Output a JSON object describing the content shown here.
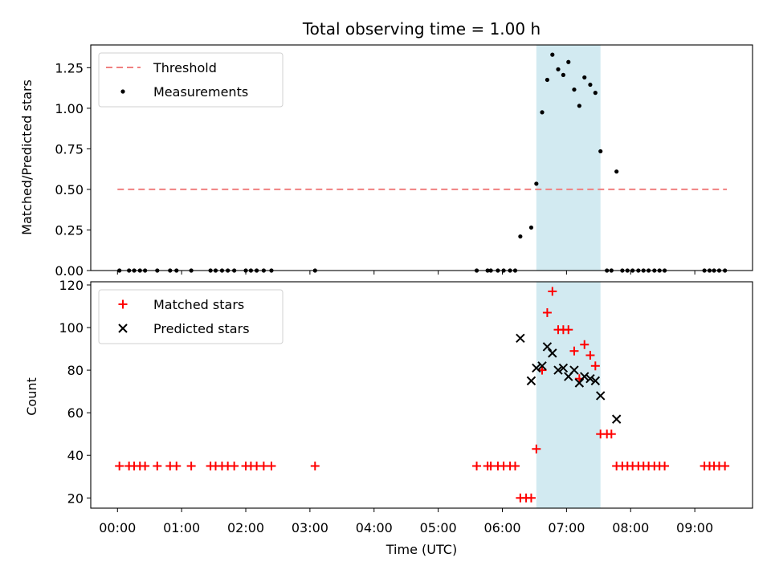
{
  "chart_data": {
    "title": "Total observing time = 1.00 h",
    "xlabel": "Time (UTC)",
    "x_unit": "hours",
    "xlim": [
      -0.4167,
      9.9
    ],
    "x_ticks": [
      {
        "value": 0,
        "label": "00:00"
      },
      {
        "value": 1,
        "label": "01:00"
      },
      {
        "value": 2,
        "label": "02:00"
      },
      {
        "value": 3,
        "label": "03:00"
      },
      {
        "value": 4,
        "label": "04:00"
      },
      {
        "value": 5,
        "label": "05:00"
      },
      {
        "value": 6,
        "label": "06:00"
      },
      {
        "value": 7,
        "label": "07:00"
      },
      {
        "value": 8,
        "label": "08:00"
      },
      {
        "value": 9,
        "label": "09:00"
      }
    ],
    "highlight_span": {
      "x0": 6.53,
      "x1": 7.53,
      "color": "#add8e6"
    },
    "panels": [
      {
        "type": "scatter",
        "ylabel": "Matched/Predicted stars",
        "ylim": [
          0,
          1.39
        ],
        "y_ticks": [
          "0.00",
          "0.25",
          "0.50",
          "0.75",
          "1.00",
          "1.25"
        ],
        "y_tick_values": [
          0,
          0.25,
          0.5,
          0.75,
          1.0,
          1.25
        ],
        "legend": {
          "placement": "upper left",
          "entries": [
            "Threshold",
            "Measurements"
          ]
        },
        "threshold": {
          "name": "Threshold",
          "y": 0.5,
          "x_range": [
            0.0,
            9.5
          ],
          "color": "#f08080",
          "style": "dashed"
        },
        "series": [
          {
            "name": "Measurements",
            "color": "#000000",
            "marker": "dot",
            "points": [
              [
                0.03,
                0
              ],
              [
                0.18,
                0
              ],
              [
                0.26,
                0
              ],
              [
                0.35,
                0
              ],
              [
                0.43,
                0
              ],
              [
                0.62,
                0
              ],
              [
                0.82,
                0
              ],
              [
                0.92,
                0
              ],
              [
                1.15,
                0
              ],
              [
                1.45,
                0
              ],
              [
                1.53,
                0
              ],
              [
                1.63,
                0
              ],
              [
                1.72,
                0
              ],
              [
                1.82,
                0
              ],
              [
                2.0,
                0
              ],
              [
                2.08,
                0
              ],
              [
                2.17,
                0
              ],
              [
                2.28,
                0
              ],
              [
                2.4,
                0
              ],
              [
                3.08,
                0
              ],
              [
                5.6,
                0
              ],
              [
                5.77,
                0
              ],
              [
                5.82,
                0
              ],
              [
                5.93,
                0
              ],
              [
                6.02,
                0
              ],
              [
                6.12,
                0
              ],
              [
                6.2,
                0
              ],
              [
                6.28,
                0.21
              ],
              [
                6.45,
                0.265
              ],
              [
                6.53,
                0.535
              ],
              [
                6.62,
                0.975
              ],
              [
                6.7,
                1.175
              ],
              [
                6.78,
                1.33
              ],
              [
                6.87,
                1.24
              ],
              [
                6.95,
                1.205
              ],
              [
                7.03,
                1.285
              ],
              [
                7.12,
                1.115
              ],
              [
                7.2,
                1.015
              ],
              [
                7.28,
                1.19
              ],
              [
                7.37,
                1.145
              ],
              [
                7.45,
                1.095
              ],
              [
                7.53,
                0.735
              ],
              [
                7.63,
                0
              ],
              [
                7.7,
                0
              ],
              [
                7.78,
                0.61
              ],
              [
                7.87,
                0
              ],
              [
                7.95,
                0
              ],
              [
                8.03,
                0
              ],
              [
                8.12,
                0
              ],
              [
                8.2,
                0
              ],
              [
                8.28,
                0
              ],
              [
                8.37,
                0
              ],
              [
                8.45,
                0
              ],
              [
                8.53,
                0
              ],
              [
                9.15,
                0
              ],
              [
                9.23,
                0
              ],
              [
                9.3,
                0
              ],
              [
                9.38,
                0
              ],
              [
                9.47,
                0
              ]
            ]
          }
        ]
      },
      {
        "type": "scatter",
        "ylabel": "Count",
        "ylim": [
          15.2,
          121.5
        ],
        "y_ticks": [
          "20",
          "40",
          "60",
          "80",
          "100",
          "120"
        ],
        "y_tick_values": [
          20,
          40,
          60,
          80,
          100,
          120
        ],
        "legend": {
          "placement": "upper left",
          "entries": [
            "Matched stars",
            "Predicted stars"
          ]
        },
        "series": [
          {
            "name": "Matched stars",
            "color": "#ff0000",
            "marker": "plus",
            "points": [
              [
                0.03,
                35
              ],
              [
                0.18,
                35
              ],
              [
                0.26,
                35
              ],
              [
                0.35,
                35
              ],
              [
                0.43,
                35
              ],
              [
                0.62,
                35
              ],
              [
                0.82,
                35
              ],
              [
                0.92,
                35
              ],
              [
                1.15,
                35
              ],
              [
                1.45,
                35
              ],
              [
                1.53,
                35
              ],
              [
                1.63,
                35
              ],
              [
                1.72,
                35
              ],
              [
                1.82,
                35
              ],
              [
                2.0,
                35
              ],
              [
                2.08,
                35
              ],
              [
                2.17,
                35
              ],
              [
                2.28,
                35
              ],
              [
                2.4,
                35
              ],
              [
                3.08,
                35
              ],
              [
                5.6,
                35
              ],
              [
                5.77,
                35
              ],
              [
                5.82,
                35
              ],
              [
                5.93,
                35
              ],
              [
                6.02,
                35
              ],
              [
                6.12,
                35
              ],
              [
                6.2,
                35
              ],
              [
                6.28,
                20
              ],
              [
                6.37,
                20
              ],
              [
                6.45,
                20
              ],
              [
                6.53,
                43
              ],
              [
                6.62,
                80
              ],
              [
                6.7,
                107
              ],
              [
                6.78,
                117
              ],
              [
                6.87,
                99
              ],
              [
                6.95,
                99
              ],
              [
                7.03,
                99
              ],
              [
                7.12,
                89
              ],
              [
                7.2,
                76
              ],
              [
                7.28,
                92
              ],
              [
                7.37,
                87
              ],
              [
                7.45,
                82
              ],
              [
                7.53,
                50
              ],
              [
                7.63,
                50
              ],
              [
                7.7,
                50
              ],
              [
                7.78,
                35
              ],
              [
                7.87,
                35
              ],
              [
                7.95,
                35
              ],
              [
                8.03,
                35
              ],
              [
                8.12,
                35
              ],
              [
                8.2,
                35
              ],
              [
                8.28,
                35
              ],
              [
                8.37,
                35
              ],
              [
                8.45,
                35
              ],
              [
                8.53,
                35
              ],
              [
                9.15,
                35
              ],
              [
                9.23,
                35
              ],
              [
                9.3,
                35
              ],
              [
                9.38,
                35
              ],
              [
                9.47,
                35
              ]
            ]
          },
          {
            "name": "Predicted stars",
            "color": "#000000",
            "marker": "x",
            "points": [
              [
                6.28,
                95
              ],
              [
                6.45,
                75
              ],
              [
                6.53,
                81
              ],
              [
                6.62,
                82
              ],
              [
                6.7,
                91
              ],
              [
                6.78,
                88
              ],
              [
                6.87,
                80
              ],
              [
                6.95,
                81
              ],
              [
                7.03,
                77
              ],
              [
                7.12,
                80
              ],
              [
                7.2,
                74
              ],
              [
                7.28,
                77
              ],
              [
                7.37,
                76
              ],
              [
                7.45,
                75
              ],
              [
                7.53,
                68
              ],
              [
                7.78,
                57
              ]
            ]
          }
        ]
      }
    ]
  }
}
